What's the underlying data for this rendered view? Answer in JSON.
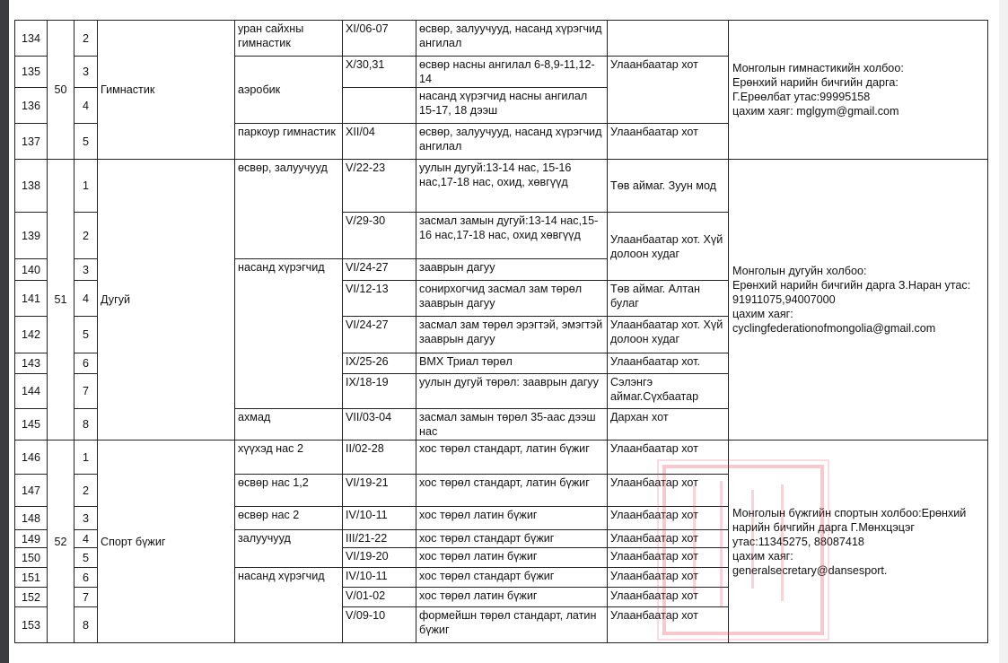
{
  "sections": [
    {
      "num": "50",
      "sport": "Гимнастик",
      "contact": [
        "Монголын гимнастикийн холбоо:",
        "Ерөнхий нарийн бичгийн дарга:",
        "Г.Ерөөлбат утас:99995158",
        "цахим хаяг: mglgym@gmail.com"
      ]
    },
    {
      "num": "51",
      "sport": "Дугуй",
      "contact": [
        "Монголын дугуйн холбоо:",
        "Ерөнхий нарийн бичгийн дарга З.Наран утас:",
        "91911075,94007000",
        "цахим  хаяг:",
        "cyclingfederationofmongolia@gmail.com"
      ]
    },
    {
      "num": "52",
      "sport": "Спорт бүжиг",
      "contact": [
        "Монголын  бүжгийн спортын холбоо:Ерөнхий",
        "нарийн бичгийн дарга Г.Мөнхцэцэг",
        "утас:11345275, 88087418",
        "цахим хаяг:",
        "generalsecretary@dansesport."
      ]
    }
  ],
  "rows": [
    {
      "no": "134",
      "sub": "2",
      "category": "уран сайхны гимнастик",
      "date": "XI/06-07",
      "desc": "өсвөр, залуучууд, насанд хүрэгчид ангилал",
      "location": ""
    },
    {
      "no": "135",
      "sub": "3",
      "category": "аэробик",
      "date": "X/30,31",
      "desc": "өсвөр насны ангилал 6-8,9-11,12-14",
      "location": "Улаанбаатар хот"
    },
    {
      "no": "136",
      "sub": "4",
      "date": "",
      "desc": "насанд хүрэгчид насны ангилал 15-17, 18 дээш"
    },
    {
      "no": "137",
      "sub": "5",
      "category": "паркоур гимнастик",
      "date": "XII/04",
      "desc": "өсвөр, залуучууд, насанд хүрэгчид ангилал",
      "location": "Улаанбаатар хот"
    },
    {
      "no": "138",
      "sub": "1",
      "category": "өсвөр, залуучууд",
      "date": "V/22-23",
      "desc": "уулын дугуй:13-14 нас, 15-16 нас,17-18 нас, охид, хөвгүүд",
      "location": "Төв аймаг. Зуун мод"
    },
    {
      "no": "139",
      "sub": "2",
      "date": "V/29-30",
      "desc": "засмал замын дугуй:13-14 нас,15-16 нас,17-18 нас, охид хөвгүүд",
      "location": "Улаанбаатар хот. Хүй долоон худаг"
    },
    {
      "no": "140",
      "sub": "3",
      "category": "насанд хүрэгчид",
      "date": "VI/24-27",
      "desc": "зааврын дагуу"
    },
    {
      "no": "141",
      "sub": "4",
      "date": "VI/12-13",
      "desc": "сонирхогчид засмал зам төрөл зааврын дагуу",
      "location": "Төв аймаг. Алтан булаг"
    },
    {
      "no": "142",
      "sub": "5",
      "date": "VI/24-27",
      "desc": "засмал зам төрөл эрэгтэй, эмэгтэй зааврын дагуу",
      "location": "Улаанбаатар хот. Хүй долоон худаг"
    },
    {
      "no": "143",
      "sub": "6",
      "date": "IX/25-26",
      "desc": "BMX Триал төрөл",
      "location": "Улаанбаатар хот."
    },
    {
      "no": "144",
      "sub": "7",
      "date": "IX/18-19",
      "desc": "уулын дугуй төрөл: зааврын дагуу",
      "location": "Сэлэнгэ аймаг.Сүхбаатар"
    },
    {
      "no": "145",
      "sub": "8",
      "category": "ахмад",
      "date": "VII/03-04",
      "desc": "засмал замын төрөл 35-аас дээш нас",
      "location": "Дархан хот"
    },
    {
      "no": "146",
      "sub": "1",
      "category": "хүүхэд нас 2",
      "date": "II/02-28",
      "desc": "хос төрөл стандарт, латин бүжиг",
      "location": "Улаанбаатар хот"
    },
    {
      "no": "147",
      "sub": "2",
      "category": "өсвөр нас 1,2",
      "date": "VI/19-21",
      "desc": "хос төрөл стандарт, латин бүжиг",
      "location": "Улаанбаатар хот"
    },
    {
      "no": "148",
      "sub": "3",
      "category": "өсвөр нас 2",
      "date": "IV/10-11",
      "desc": "хос төрөл латин бүжиг",
      "location": "Улаанбаатар хот"
    },
    {
      "no": "149",
      "sub": "4",
      "category": "залуучууд",
      "date": "III/21-22",
      "desc": "хос төрөл стандарт бүжиг",
      "location": "Улаанбаатар хот"
    },
    {
      "no": "150",
      "sub": "5",
      "date": "VI/19-20",
      "desc": "хос төрөл латин бүжиг",
      "location": "Улаанбаатар хот"
    },
    {
      "no": "151",
      "sub": "6",
      "category": "насанд хүрэгчид",
      "date": "IV/10-11",
      "desc": "хос төрөл стандарт бүжиг",
      "location": "Улаанбаатар хот"
    },
    {
      "no": "152",
      "sub": "7",
      "date": "V/01-02",
      "desc": "хос төрөл латин бүжиг",
      "location": "Улаанбаатар хот"
    },
    {
      "no": "153",
      "sub": "8",
      "date": "V/09-10",
      "desc": "формейшн төрөл стандарт, латин бүжиг",
      "location": "Улаанбаатар хот"
    }
  ],
  "stamp_color": "#dc3c50"
}
